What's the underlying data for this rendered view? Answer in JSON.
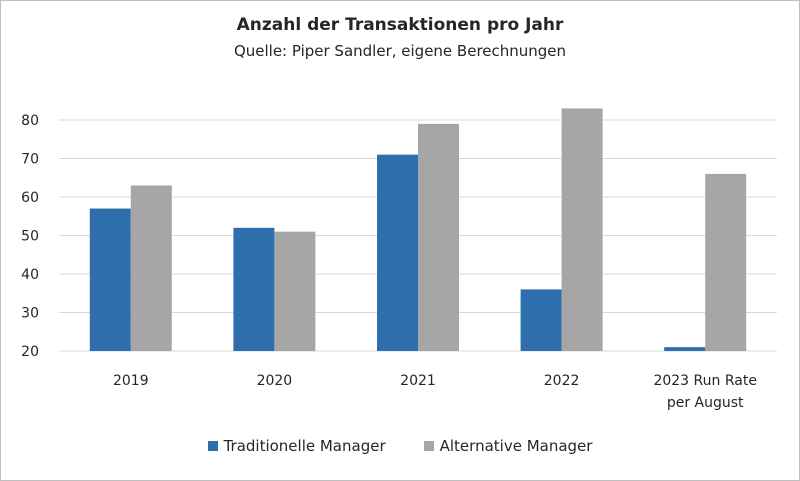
{
  "chart_data": {
    "type": "bar",
    "title": "Anzahl der Transaktionen pro Jahr",
    "subtitle": "Quelle: Piper Sandler, eigene Berechnungen",
    "categories": [
      [
        "2019"
      ],
      [
        "2020"
      ],
      [
        "2021"
      ],
      [
        "2022"
      ],
      [
        "2023 Run Rate",
        "per August"
      ]
    ],
    "series": [
      {
        "name": "Traditionelle Manager",
        "color": "#2e6ead",
        "values": [
          57,
          52,
          71,
          36,
          21
        ]
      },
      {
        "name": "Alternative Manager",
        "color": "#a6a6a6",
        "values": [
          63,
          51,
          79,
          83,
          66
        ]
      }
    ],
    "ylim": [
      20,
      80
    ],
    "yticks": [
      "20",
      "30",
      "40",
      "50",
      "60",
      "70",
      "80"
    ],
    "grid": true,
    "legend_position": "bottom"
  }
}
